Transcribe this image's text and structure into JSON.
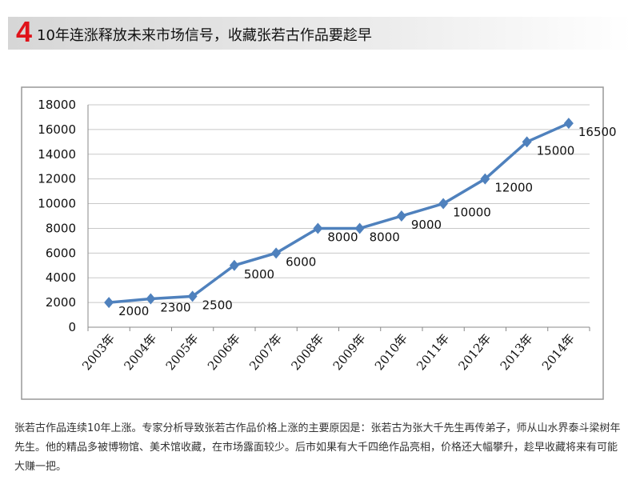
{
  "header": {
    "number": "4",
    "title": "10年连涨释放未来市场信号，收藏张若古作品要趁早"
  },
  "chart_data": {
    "type": "line",
    "categories": [
      "2003年",
      "2004年",
      "2005年",
      "2006年",
      "2007年",
      "2008年",
      "2009年",
      "2010年",
      "2011年",
      "2012年",
      "2013年",
      "2014年"
    ],
    "values": [
      2000,
      2300,
      2500,
      5000,
      6000,
      8000,
      8000,
      9000,
      10000,
      12000,
      15000,
      16500
    ],
    "data_labels": [
      "2000",
      "2300",
      "2500",
      "5000",
      "6000",
      "8000",
      "8000",
      "9000",
      "10000",
      "12000",
      "15000",
      "16500"
    ],
    "ylim": [
      0,
      18000
    ],
    "yticks": [
      "0",
      "2000",
      "4000",
      "6000",
      "8000",
      "10000",
      "12000",
      "14000",
      "16000",
      "18000"
    ],
    "grid": true,
    "line_color": "#4f81bd",
    "title": "",
    "xlabel": "",
    "ylabel": ""
  },
  "description": "张若古作品连续10年上涨。专家分析导致张若古作品价格上涨的主要原因是：张若古为张大千先生再传弟子，师从山水界泰斗梁树年先生。他的精品多被博物馆、美术馆收藏，在市场露面较少。后市如果有大千四绝作品亮相，价格还大幅攀升，趁早收藏将来有可能大赚一把。"
}
